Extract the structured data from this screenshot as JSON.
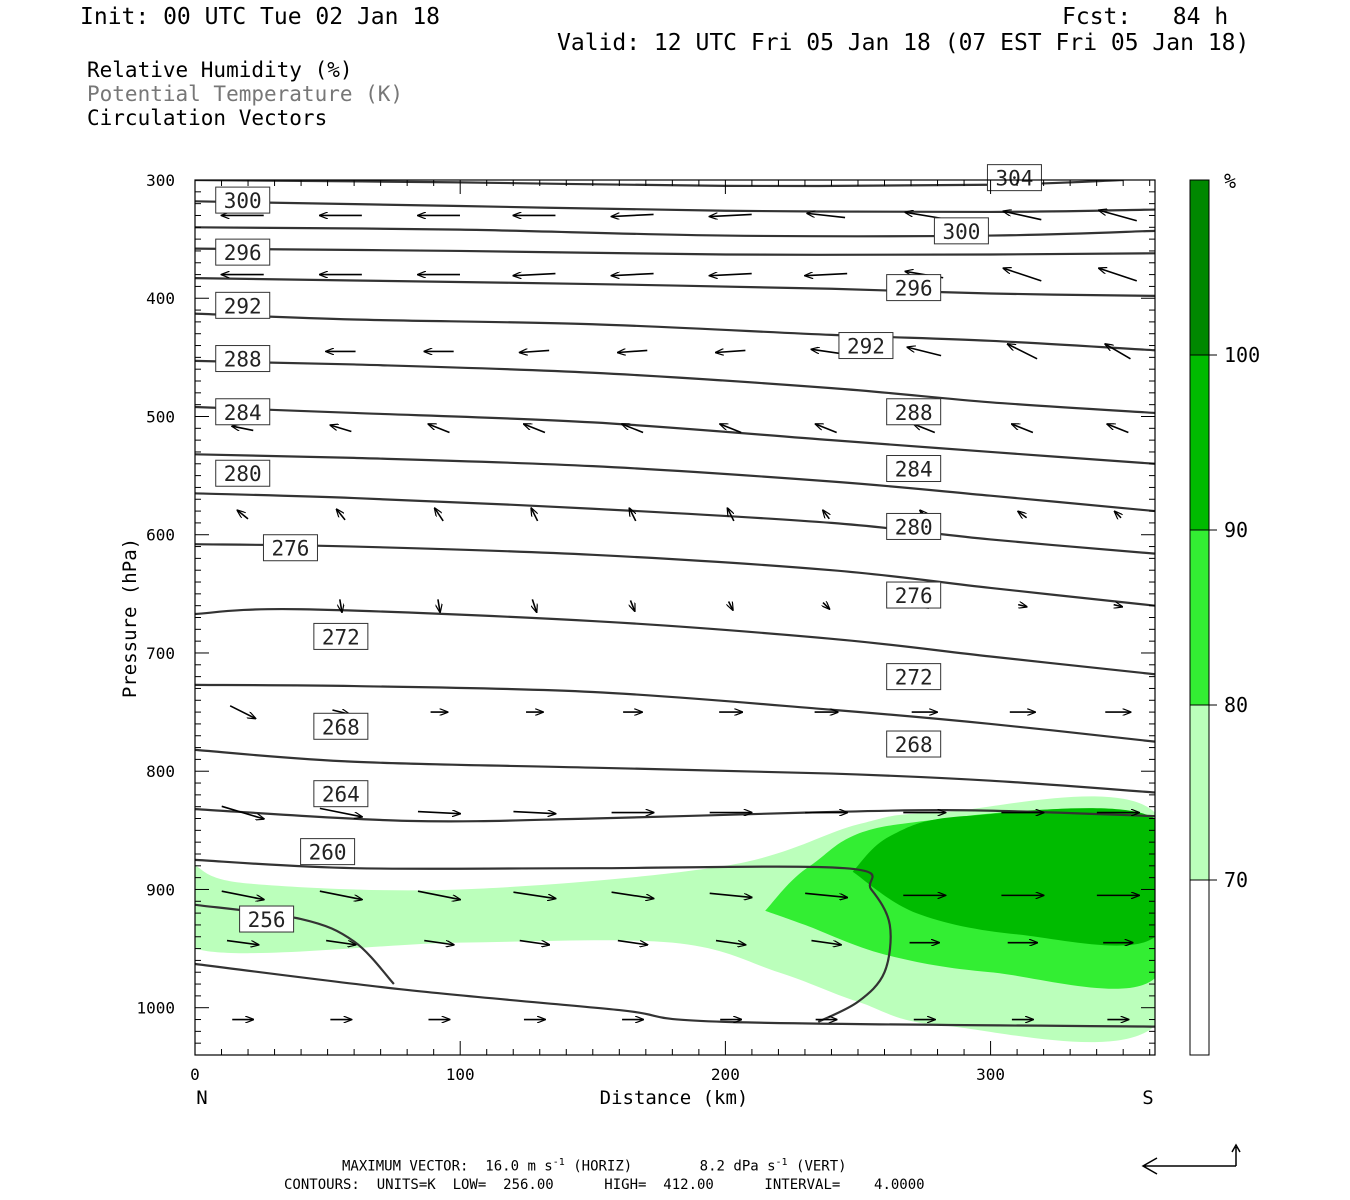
{
  "header": {
    "init": "Init: 00 UTC Tue 02 Jan 18",
    "fcst": "Fcst:   84 h",
    "valid": "Valid: 12 UTC Fri 05 Jan 18 (07 EST Fri 05 Jan 18)"
  },
  "legend": {
    "line1": "Relative Humidity (%)",
    "line2": "Potential Temperature (K)",
    "line3": "Circulation Vectors"
  },
  "colors": {
    "rh70": "#bbffbb",
    "rh80": "#33ee33",
    "rh90": "#00bb00",
    "rh100": "#008800",
    "contour": "#333333"
  },
  "footer": {
    "vector_label": "MAXIMUM VECTOR:",
    "vector_horiz": "16.0 m s",
    "horiz_unit": "(HORIZ)",
    "vector_vert": "8.2 dPa s",
    "vert_unit": "(VERT)",
    "superscript": "-1",
    "contours": "CONTOURS:  UNITS=K  LOW=  256.00      HIGH=  412.00      INTERVAL=    4.0000"
  },
  "chart_data": {
    "type": "cross-section",
    "xlabel": "Distance (km)",
    "ylabel": "Pressure (hPa)",
    "xlim": [
      0,
      362
    ],
    "ylim": [
      1040,
      300
    ],
    "x_ticks": [
      "0",
      "100",
      "200",
      "300"
    ],
    "y_ticks": [
      "300",
      "400",
      "500",
      "600",
      "700",
      "800",
      "900",
      "1000"
    ],
    "x_end_labels": {
      "left": "N",
      "right": "S"
    },
    "colorbar": {
      "unit": "%",
      "levels": [
        "70",
        "80",
        "90",
        "100"
      ]
    },
    "theta_contours": [
      {
        "label": "256",
        "points": [
          [
            0,
            913
          ],
          [
            40,
            925
          ],
          [
            60,
            944
          ],
          [
            75,
            980
          ]
        ]
      },
      {
        "label": "260",
        "points": [
          [
            0,
            875
          ],
          [
            60,
            882
          ],
          [
            150,
            882
          ],
          [
            245,
            882
          ],
          [
            255,
            900
          ],
          [
            262,
            930
          ],
          [
            260,
            970
          ],
          [
            250,
            995
          ],
          [
            235,
            1012
          ]
        ]
      },
      {
        "label": "264",
        "points": [
          [
            0,
            832
          ],
          [
            80,
            842
          ],
          [
            150,
            840
          ],
          [
            230,
            835
          ],
          [
            290,
            833
          ],
          [
            362,
            838
          ]
        ]
      },
      {
        "label": "268",
        "points": [
          [
            0,
            782
          ],
          [
            60,
            792
          ],
          [
            150,
            797
          ],
          [
            240,
            802
          ],
          [
            300,
            808
          ],
          [
            362,
            818
          ]
        ]
      },
      {
        "label": "272",
        "points": [
          [
            0,
            727
          ],
          [
            60,
            728
          ],
          [
            150,
            733
          ],
          [
            240,
            748
          ],
          [
            300,
            760
          ],
          [
            362,
            775
          ]
        ]
      },
      {
        "label": "276",
        "points": [
          [
            0,
            667
          ],
          [
            40,
            663
          ],
          [
            150,
            673
          ],
          [
            240,
            688
          ],
          [
            300,
            703
          ],
          [
            362,
            718
          ]
        ]
      },
      {
        "label": "280",
        "points": [
          [
            0,
            608
          ],
          [
            60,
            610
          ],
          [
            150,
            617
          ],
          [
            240,
            630
          ],
          [
            300,
            645
          ],
          [
            362,
            660
          ]
        ]
      },
      {
        "label": "284",
        "points": [
          [
            0,
            565
          ],
          [
            60,
            569
          ],
          [
            150,
            578
          ],
          [
            240,
            590
          ],
          [
            300,
            604
          ],
          [
            362,
            616
          ]
        ]
      },
      {
        "label": "288",
        "points": [
          [
            0,
            532
          ],
          [
            60,
            535
          ],
          [
            150,
            542
          ],
          [
            240,
            555
          ],
          [
            300,
            567
          ],
          [
            362,
            580
          ]
        ]
      },
      {
        "label": "292",
        "points": [
          [
            0,
            492
          ],
          [
            60,
            497
          ],
          [
            150,
            505
          ],
          [
            240,
            520
          ],
          [
            300,
            530
          ],
          [
            362,
            540
          ]
        ]
      },
      {
        "label": "296",
        "points": [
          [
            0,
            453
          ],
          [
            60,
            456
          ],
          [
            150,
            463
          ],
          [
            240,
            476
          ],
          [
            300,
            488
          ],
          [
            362,
            497
          ]
        ]
      },
      {
        "label": "300",
        "points": [
          [
            0,
            413
          ],
          [
            60,
            418
          ],
          [
            150,
            422
          ],
          [
            240,
            431
          ],
          [
            300,
            436
          ],
          [
            362,
            444
          ]
        ]
      },
      {
        "label": "304",
        "points": [
          [
            0,
            383
          ],
          [
            60,
            385
          ],
          [
            150,
            388
          ],
          [
            240,
            392
          ],
          [
            300,
            396
          ],
          [
            362,
            398
          ]
        ]
      },
      {
        "label": "",
        "points": [
          [
            0,
            358
          ],
          [
            100,
            360
          ],
          [
            200,
            363
          ],
          [
            300,
            363
          ],
          [
            362,
            362
          ]
        ]
      },
      {
        "label": "",
        "points": [
          [
            0,
            340
          ],
          [
            100,
            342
          ],
          [
            200,
            347
          ],
          [
            300,
            347
          ],
          [
            362,
            343
          ]
        ]
      },
      {
        "label": "",
        "points": [
          [
            0,
            318
          ],
          [
            100,
            322
          ],
          [
            200,
            326
          ],
          [
            300,
            327
          ],
          [
            362,
            325
          ]
        ]
      },
      {
        "label": "",
        "points": [
          [
            0,
            300
          ],
          [
            100,
            302
          ],
          [
            200,
            305
          ],
          [
            300,
            304
          ],
          [
            350,
            300
          ]
        ]
      },
      {
        "label": "",
        "points": [
          [
            0,
            963
          ],
          [
            80,
            985
          ],
          [
            160,
            1002
          ],
          [
            200,
            1012
          ],
          [
            362,
            1016
          ]
        ]
      }
    ],
    "rh_regions": [
      {
        "level": "70",
        "points": [
          [
            0,
            880
          ],
          [
            20,
            895
          ],
          [
            100,
            900
          ],
          [
            200,
            880
          ],
          [
            250,
            845
          ],
          [
            280,
            835
          ],
          [
            362,
            835
          ],
          [
            362,
            1015
          ],
          [
            282,
            1015
          ],
          [
            250,
            995
          ],
          [
            220,
            970
          ],
          [
            180,
            945
          ],
          [
            100,
            945
          ],
          [
            0,
            950
          ]
        ]
      },
      {
        "level": "80",
        "points": [
          [
            215,
            918
          ],
          [
            232,
            880
          ],
          [
            265,
            845
          ],
          [
            362,
            842
          ],
          [
            362,
            975
          ],
          [
            300,
            970
          ],
          [
            260,
            955
          ],
          [
            230,
            930
          ]
        ]
      },
      {
        "level": "90",
        "points": [
          [
            248,
            885
          ],
          [
            262,
            855
          ],
          [
            290,
            838
          ],
          [
            362,
            840
          ],
          [
            362,
            940
          ],
          [
            310,
            938
          ],
          [
            272,
            920
          ]
        ]
      }
    ]
  }
}
